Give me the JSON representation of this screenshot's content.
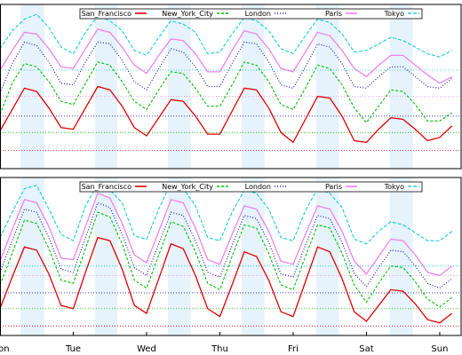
{
  "charts": [
    {
      "chart_data": {
        "type": "line",
        "x": [
          0,
          4,
          8,
          12,
          16,
          20,
          24,
          28,
          32,
          36,
          40,
          44,
          48,
          52,
          56,
          60,
          64,
          68,
          72,
          76,
          80,
          84,
          88,
          92,
          96,
          100,
          104,
          108,
          112,
          116,
          120,
          124,
          128,
          132,
          136,
          140,
          144,
          148
        ],
        "xlim": [
          0,
          151
        ],
        "ylim": [
          0,
          100
        ],
        "bands": [
          [
            6.7,
            14.5
          ],
          [
            31.1,
            38.4
          ],
          [
            55,
            62.5
          ],
          [
            79.1,
            86.6
          ],
          [
            103.5,
            111
          ],
          [
            127.6,
            135.2
          ]
        ],
        "series": [
          {
            "name": "San_Francisco",
            "color": "#e00000",
            "style": "solid",
            "baseline": 11,
            "values": [
              23,
              36,
              49,
              47,
              37,
              25,
              24,
              37,
              50,
              48,
              38,
              25,
              20,
              31,
              42,
              41,
              32,
              21,
              21,
              35,
              49,
              48,
              37,
              22,
              16,
              30,
              44,
              43,
              32,
              17,
              16,
              24,
              31,
              30,
              24,
              17,
              19,
              26
            ]
          },
          {
            "name": "New_York_City",
            "color": "#00c000",
            "style": "dashed",
            "baseline": 22,
            "values": [
              33,
              52,
              64,
              62,
              53,
              41,
              39,
              52,
              65,
              63,
              53,
              41,
              36,
              48,
              59,
              58,
              49,
              38,
              38,
              51,
              65,
              63,
              53,
              39,
              36,
              49,
              63,
              61,
              51,
              37,
              28,
              38,
              48,
              47,
              39,
              29,
              29,
              34
            ]
          },
          {
            "name": "London",
            "color": "#2020c0",
            "style": "dotted",
            "baseline": 32,
            "values": [
              46,
              64,
              77,
              75,
              65,
              52,
              51,
              65,
              77,
              76,
              66,
              53,
              48,
              61,
              73,
              71,
              62,
              50,
              50,
              64,
              77,
              76,
              65,
              51,
              49,
              62,
              76,
              74,
              64,
              50,
              49,
              56,
              62,
              62,
              56,
              50,
              49,
              55
            ]
          },
          {
            "name": "Paris",
            "color": "#ee82ee",
            "style": "solid",
            "baseline": 44,
            "values": [
              60,
              72,
              83,
              82,
              73,
              62,
              61,
              73,
              85,
              83,
              74,
              63,
              58,
              69,
              79,
              78,
              70,
              59,
              59,
              72,
              84,
              82,
              73,
              61,
              59,
              71,
              83,
              81,
              72,
              61,
              56,
              63,
              69,
              69,
              63,
              57,
              52,
              56
            ]
          },
          {
            "name": "Tokyo",
            "color": "#00c8d8",
            "style": "dashed2",
            "baseline": 60,
            "values": [
              73,
              84,
              91,
              94,
              86,
              74,
              70,
              83,
              93,
              90,
              84,
              72,
              69,
              80,
              90,
              88,
              83,
              70,
              71,
              82,
              92,
              90,
              84,
              73,
              70,
              81,
              91,
              89,
              82,
              71,
              72,
              76,
              80,
              78,
              74,
              70,
              68,
              72
            ]
          }
        ]
      }
    },
    {
      "chart_data": {
        "type": "line",
        "x": [
          0,
          4,
          8,
          12,
          16,
          20,
          24,
          28,
          32,
          36,
          40,
          44,
          48,
          52,
          56,
          60,
          64,
          68,
          72,
          76,
          80,
          84,
          88,
          92,
          96,
          100,
          104,
          108,
          112,
          116,
          120,
          124,
          128,
          132,
          136,
          140,
          144,
          148
        ],
        "xlim": [
          0,
          151
        ],
        "ylim": [
          0,
          100
        ],
        "xticks": [
          {
            "value": 0,
            "label": "Mon"
          },
          {
            "value": 24,
            "label": "Tue"
          },
          {
            "value": 48,
            "label": "Wed"
          },
          {
            "value": 72,
            "label": "Thu"
          },
          {
            "value": 96,
            "label": "Fri"
          },
          {
            "value": 120,
            "label": "Sat"
          },
          {
            "value": 144,
            "label": "Sun"
          }
        ],
        "bands": [
          [
            6.7,
            14.5
          ],
          [
            31.1,
            38.4
          ],
          [
            55,
            62.5
          ],
          [
            79.1,
            86.6
          ],
          [
            103.5,
            111
          ],
          [
            127.6,
            135.2
          ]
        ],
        "series": [
          {
            "name": "San_Francisco",
            "color": "#e00000",
            "style": "solid",
            "baseline": 6,
            "values": [
              17,
              37,
              56,
              54,
              39,
              19,
              17,
              40,
              62,
              60,
              42,
              19,
              14,
              36,
              58,
              55,
              38,
              17,
              12,
              32,
              53,
              50,
              35,
              15,
              12,
              34,
              56,
              53,
              36,
              15,
              9,
              19,
              29,
              28,
              20,
              10,
              8,
              14
            ]
          },
          {
            "name": "New_York_City",
            "color": "#00c000",
            "style": "dashed",
            "baseline": 17,
            "values": [
              32,
              52,
              73,
              71,
              55,
              35,
              33,
              55,
              78,
              75,
              58,
              35,
              30,
              51,
              72,
              69,
              53,
              33,
              29,
              50,
              70,
              68,
              52,
              32,
              29,
              50,
              70,
              68,
              52,
              32,
              21,
              33,
              44,
              43,
              34,
              23,
              18,
              24
            ]
          },
          {
            "name": "London",
            "color": "#2020c0",
            "style": "dotted",
            "baseline": 27,
            "values": [
              40,
              60,
              80,
              78,
              62,
              42,
              40,
              62,
              84,
              81,
              64,
              43,
              38,
              58,
              78,
              76,
              60,
              40,
              37,
              57,
              76,
              74,
              59,
              39,
              37,
              57,
              76,
              74,
              59,
              39,
              31,
              43,
              54,
              53,
              44,
              33,
              30,
              36
            ]
          },
          {
            "name": "Paris",
            "color": "#ee82ee",
            "style": "solid",
            "baseline": 38,
            "values": [
              47,
              67,
              86,
              84,
              69,
              49,
              48,
              69,
              90,
              87,
              71,
              51,
              46,
              66,
              86,
              84,
              68,
              48,
              45,
              64,
              82,
              80,
              66,
              47,
              45,
              64,
              82,
              80,
              66,
              47,
              39,
              50,
              61,
              60,
              51,
              40,
              38,
              44
            ]
          },
          {
            "name": "Tokyo",
            "color": "#00c8d8",
            "style": "dashed2",
            "baseline": 44,
            "values": [
              62,
              78,
              93,
              95,
              80,
              64,
              60,
              82,
              96,
              92,
              84,
              63,
              61,
              80,
              97,
              93,
              82,
              62,
              60,
              78,
              92,
              90,
              80,
              62,
              60,
              79,
              93,
              90,
              81,
              61,
              58,
              66,
              72,
              70,
              65,
              60,
              60,
              66
            ]
          }
        ]
      }
    }
  ]
}
